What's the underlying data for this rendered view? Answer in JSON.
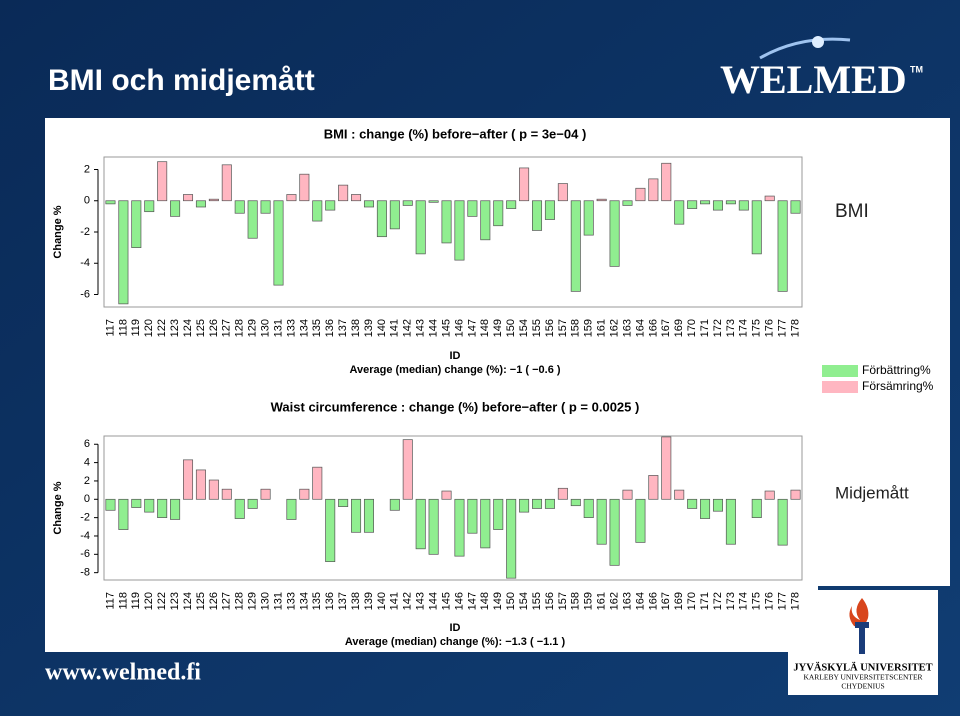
{
  "header": {
    "title": "BMI och midjemått",
    "logo": "WELMED",
    "logo_mark": "TM"
  },
  "side_labels": [
    "BMI",
    "Midjemått"
  ],
  "legend": [
    {
      "name": "Förbättring%",
      "color": "#90ee90"
    },
    {
      "name": "Försämring%",
      "color": "#ffb6c1"
    }
  ],
  "footer": "www.welmed.fi",
  "university": [
    "JYVÄSKYLÄ UNIVERSITET",
    "KARLEBY UNIVERSITETSCENTER",
    "CHYDENIUS"
  ],
  "chart_data": [
    {
      "type": "bar",
      "title": "BMI : change (%) before−after ( p =  3e−04 )",
      "y_label": "Change %",
      "x_label": "ID",
      "subtitle": "Average (median) change (%): −1 ( −0.6 )",
      "categories": [
        "117",
        "118",
        "119",
        "120",
        "122",
        "123",
        "124",
        "125",
        "126",
        "127",
        "128",
        "129",
        "130",
        "131",
        "133",
        "134",
        "135",
        "136",
        "137",
        "138",
        "139",
        "140",
        "141",
        "142",
        "143",
        "144",
        "145",
        "146",
        "147",
        "148",
        "149",
        "150",
        "154",
        "155",
        "156",
        "157",
        "158",
        "159",
        "161",
        "162",
        "163",
        "164",
        "166",
        "167",
        "169",
        "170",
        "171",
        "172",
        "173",
        "174",
        "175",
        "176",
        "177",
        "178"
      ],
      "values": [
        -0.2,
        -6.6,
        -3.0,
        -0.7,
        2.5,
        -1.0,
        0.4,
        -0.4,
        0.1,
        2.3,
        -0.8,
        -2.4,
        -0.8,
        -5.4,
        0.4,
        1.7,
        -1.3,
        -0.6,
        1.0,
        0.4,
        -0.4,
        -2.3,
        -1.8,
        -0.3,
        -3.4,
        -0.1,
        -2.7,
        -3.8,
        -1.0,
        -2.5,
        -1.6,
        -0.5,
        2.1,
        -1.9,
        -1.2,
        1.1,
        -5.8,
        -2.2,
        0.1,
        -4.2,
        -0.3,
        0.8,
        1.4,
        2.4,
        -1.5,
        -0.5,
        -0.2,
        -0.6,
        -0.2,
        -0.6,
        -3.4,
        0.3,
        -5.8,
        -0.8
      ],
      "ylim": [
        -6.8,
        2.8
      ],
      "yticks": [
        -6,
        -4,
        -2,
        0,
        2
      ]
    },
    {
      "type": "bar",
      "title": "Waist circumference : change (%) before−after ( p =  0.0025 )",
      "y_label": "Change %",
      "x_label": "ID",
      "subtitle": "Average (median) change (%): −1.3 ( −1.1 )",
      "categories": [
        "117",
        "118",
        "119",
        "120",
        "122",
        "123",
        "124",
        "125",
        "126",
        "127",
        "128",
        "129",
        "130",
        "131",
        "133",
        "134",
        "135",
        "136",
        "137",
        "138",
        "139",
        "140",
        "141",
        "142",
        "143",
        "144",
        "145",
        "146",
        "147",
        "148",
        "149",
        "150",
        "154",
        "155",
        "156",
        "157",
        "158",
        "159",
        "161",
        "162",
        "163",
        "164",
        "166",
        "167",
        "169",
        "170",
        "171",
        "172",
        "173",
        "174",
        "175",
        "176",
        "177",
        "178"
      ],
      "values": [
        -1.2,
        -3.3,
        -0.9,
        -1.4,
        -2.0,
        -2.2,
        4.3,
        3.2,
        2.1,
        1.1,
        -2.1,
        -1.0,
        1.1,
        0,
        -2.2,
        1.1,
        3.5,
        -6.8,
        -0.8,
        -3.6,
        -3.6,
        0,
        -1.2,
        6.5,
        -5.4,
        -6.0,
        0.9,
        -6.2,
        -3.7,
        -5.3,
        -3.3,
        -8.6,
        -1.4,
        -1.0,
        -1.0,
        1.2,
        -0.7,
        -2.0,
        -4.9,
        -7.2,
        1.0,
        -4.7,
        2.6,
        6.8,
        1.0,
        -1.0,
        -2.1,
        -1.3,
        -4.9,
        0,
        -2.0,
        0.9,
        -5.0,
        1.0
      ],
      "ylim": [
        -8.8,
        6.9
      ],
      "yticks": [
        -8,
        -6,
        -4,
        -2,
        0,
        2,
        4,
        6
      ]
    }
  ]
}
